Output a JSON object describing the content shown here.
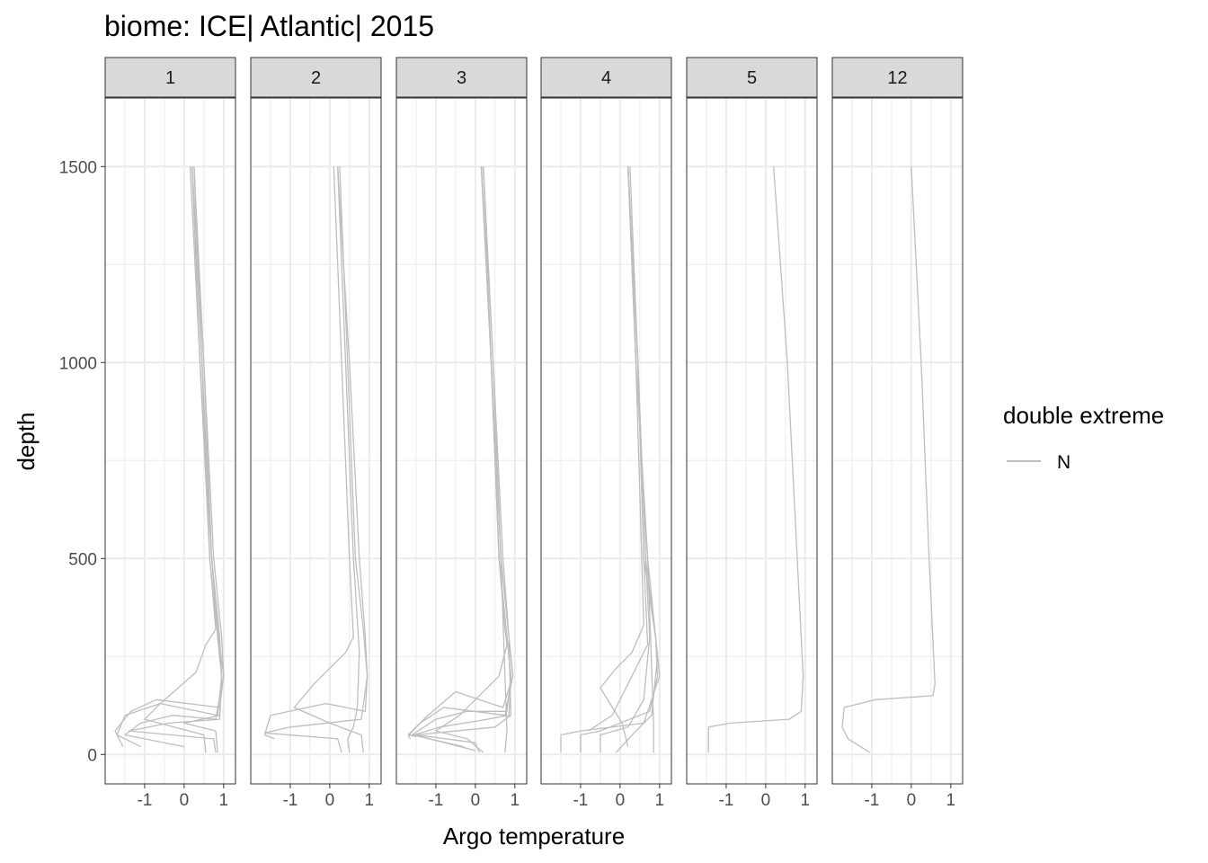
{
  "chart_data": {
    "type": "line",
    "title": "biome: ICE| Atlantic| 2015",
    "xlabel": "Argo temperature",
    "ylabel": "depth",
    "x_ticks": [
      -1,
      0,
      1
    ],
    "x_tick_labels": [
      "-1",
      "0",
      "1"
    ],
    "y_ticks": [
      0,
      500,
      1000,
      1500
    ],
    "y_tick_labels": [
      "0",
      "500",
      "1000",
      "1500"
    ],
    "xlim": [
      -2.0,
      1.3
    ],
    "ylim": [
      1675,
      -75
    ],
    "y_reversed": true,
    "grid": true,
    "legend": {
      "title": "double extreme",
      "position": "right",
      "entries": [
        "N"
      ]
    },
    "line_color": "#bebebe",
    "facets": [
      {
        "label": "1",
        "profiles": [
          {
            "x": [
              -1.55,
              -1.75,
              -1.35,
              -0.7,
              0.9,
              1.0,
              0.95,
              0.75,
              0.5,
              0.2
            ],
            "y": [
              20,
              60,
              110,
              140,
              120,
              200,
              300,
              500,
              1000,
              1500
            ]
          },
          {
            "x": [
              -1.1,
              -1.7,
              -1.5,
              -0.6,
              0.85,
              0.95,
              0.9,
              0.7,
              0.45,
              0.25
            ],
            "y": [
              20,
              50,
              100,
              130,
              100,
              200,
              300,
              500,
              1000,
              1500
            ]
          },
          {
            "x": [
              0.0,
              -1.5,
              -1.1,
              -0.3,
              0.8,
              1.0,
              0.85,
              0.7,
              0.4,
              0.2
            ],
            "y": [
              20,
              50,
              80,
              100,
              90,
              200,
              320,
              500,
              1000,
              1500
            ]
          },
          {
            "x": [
              0.55,
              0.5,
              -1.0,
              -0.6,
              0.3,
              0.55,
              0.8,
              0.65,
              0.4,
              0.15
            ],
            "y": [
              5,
              50,
              90,
              130,
              210,
              280,
              320,
              500,
              1000,
              1500
            ]
          },
          {
            "x": [
              0.8,
              0.75,
              -1.4,
              -0.4,
              0.9,
              0.95,
              0.85,
              0.7,
              0.5,
              0.25
            ],
            "y": [
              5,
              40,
              60,
              80,
              90,
              200,
              300,
              500,
              1000,
              1500
            ]
          },
          {
            "x": [
              0.85,
              0.8,
              0.0,
              0.9,
              0.95,
              0.85,
              0.65,
              0.45,
              0.2
            ],
            "y": [
              5,
              60,
              80,
              100,
              200,
              300,
              500,
              1000,
              1500
            ]
          }
        ]
      },
      {
        "label": "2",
        "profiles": [
          {
            "x": [
              -1.4,
              -1.65,
              -1.5,
              -0.1,
              0.9,
              0.95,
              0.85,
              0.65,
              0.45,
              0.25
            ],
            "y": [
              40,
              50,
              100,
              130,
              110,
              200,
              320,
              500,
              1000,
              1500
            ]
          },
          {
            "x": [
              0.3,
              0.2,
              -1.65,
              -1.0,
              0.8,
              0.95,
              0.9,
              0.75,
              0.5,
              0.2
            ],
            "y": [
              5,
              40,
              55,
              70,
              90,
              200,
              300,
              500,
              1000,
              1500
            ]
          },
          {
            "x": [
              0.85,
              0.8,
              0.0,
              -0.9,
              -0.4,
              0.4,
              0.6,
              0.5,
              0.3,
              0.1
            ],
            "y": [
              5,
              50,
              80,
              120,
              180,
              260,
              300,
              500,
              1000,
              1500
            ]
          },
          {
            "x": [
              0.5,
              0.45,
              0.6,
              0.7,
              0.75,
              0.6,
              0.4,
              0.2
            ],
            "y": [
              5,
              40,
              70,
              120,
              260,
              500,
              1000,
              1500
            ]
          }
        ]
      },
      {
        "label": "3",
        "profiles": [
          {
            "x": [
              -1.65,
              -1.7,
              -1.2,
              -0.5,
              0.7,
              0.95,
              0.85,
              0.65,
              0.4,
              0.15
            ],
            "y": [
              40,
              50,
              100,
              160,
              120,
              200,
              300,
              500,
              1000,
              1500
            ]
          },
          {
            "x": [
              -1.5,
              -1.68,
              -1.4,
              -0.8,
              0.75,
              0.95,
              0.85,
              0.65,
              0.4,
              0.2
            ],
            "y": [
              45,
              50,
              80,
              120,
              100,
              200,
              300,
              500,
              1000,
              1500
            ]
          },
          {
            "x": [
              -0.3,
              -1.6,
              -1.0,
              -0.2,
              0.8,
              0.9,
              0.8,
              0.6,
              0.4,
              0.15
            ],
            "y": [
              20,
              50,
              90,
              110,
              110,
              200,
              300,
              500,
              1000,
              1500
            ]
          },
          {
            "x": [
              0.0,
              -1.55,
              -0.9,
              0.3,
              0.85,
              0.9,
              0.8,
              0.6,
              0.4,
              0.15
            ],
            "y": [
              10,
              50,
              70,
              90,
              100,
              200,
              300,
              500,
              1000,
              1500
            ]
          },
          {
            "x": [
              0.1,
              0.0,
              -1.5,
              0.5,
              0.9,
              0.85,
              0.7,
              0.45,
              0.2
            ],
            "y": [
              5,
              30,
              50,
              70,
              100,
              300,
              500,
              1000,
              1500
            ]
          },
          {
            "x": [
              0.2,
              -0.2,
              -1.0,
              -0.4,
              0.6,
              0.8,
              0.75,
              0.6,
              0.4,
              0.15
            ],
            "y": [
              5,
              40,
              60,
              100,
              200,
              280,
              320,
              500,
              1000,
              1500
            ]
          },
          {
            "x": [
              0.75,
              0.8,
              0.75,
              0.65,
              0.45,
              0.2
            ],
            "y": [
              5,
              60,
              200,
              500,
              1000,
              1500
            ]
          }
        ]
      },
      {
        "label": "4",
        "profiles": [
          {
            "x": [
              -1.5,
              -1.5,
              -1.0,
              0.6,
              1.0,
              0.9,
              0.65,
              0.45,
              0.2
            ],
            "y": [
              5,
              50,
              60,
              80,
              200,
              300,
              500,
              1000,
              1500
            ]
          },
          {
            "x": [
              -1.0,
              -1.0,
              -0.5,
              0.75,
              0.95,
              0.9,
              0.6,
              0.45,
              0.2
            ],
            "y": [
              5,
              50,
              60,
              110,
              200,
              300,
              500,
              1000,
              1500
            ]
          },
          {
            "x": [
              -0.5,
              -0.5,
              0.2,
              0.6,
              0.75,
              0.65,
              0.45,
              0.25
            ],
            "y": [
              5,
              50,
              70,
              140,
              300,
              500,
              1000,
              1500
            ]
          },
          {
            "x": [
              0.2,
              0.05,
              -0.5,
              -0.1,
              0.3,
              0.6,
              0.55,
              0.4,
              0.2
            ],
            "y": [
              20,
              80,
              170,
              220,
              260,
              330,
              500,
              1000,
              1500
            ]
          },
          {
            "x": [
              0.85,
              0.85,
              0.7,
              0.4,
              0.2
            ],
            "y": [
              5,
              80,
              500,
              1000,
              1500
            ]
          },
          {
            "x": [
              -0.8,
              -0.2,
              0.3,
              0.7,
              0.6,
              0.45,
              0.2
            ],
            "y": [
              60,
              100,
              200,
              280,
              500,
              1000,
              1500
            ]
          },
          {
            "x": [
              -0.1,
              0.4,
              0.8,
              0.95,
              0.7,
              0.4,
              0.2
            ],
            "y": [
              5,
              60,
              100,
              250,
              500,
              1000,
              1500
            ]
          }
        ]
      },
      {
        "label": "5",
        "profiles": [
          {
            "x": [
              -1.45,
              -1.45,
              -0.9,
              0.6,
              0.9,
              0.95,
              0.8,
              0.55,
              0.2
            ],
            "y": [
              5,
              70,
              80,
              90,
              110,
              200,
              500,
              1000,
              1500
            ]
          }
        ]
      },
      {
        "label": "12",
        "profiles": [
          {
            "x": [
              -1.05,
              -1.6,
              -1.75,
              -1.7,
              -0.9,
              0.55,
              0.6,
              0.45,
              0.25,
              0.0
            ],
            "y": [
              5,
              40,
              70,
              120,
              140,
              150,
              180,
              500,
              1000,
              1500
            ]
          }
        ]
      }
    ]
  }
}
